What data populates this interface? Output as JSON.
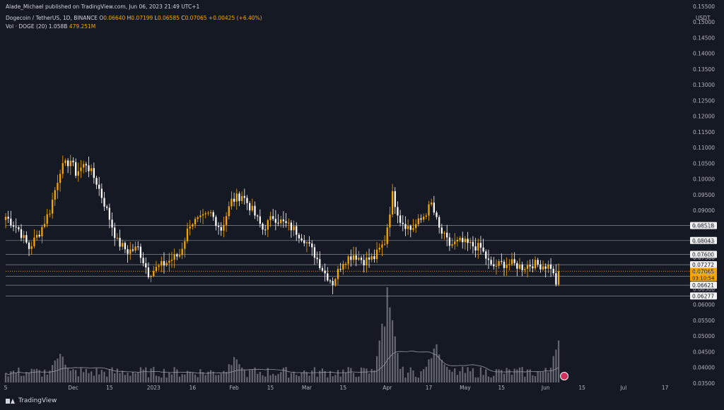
{
  "publisher": "Alade_Michael published on TradingView.com, Jun 06, 2023 21:49 UTC+1",
  "currency": "USDT",
  "symbol": {
    "name": "Dogecoin / TetherUS, 1D, BINANCE",
    "open_label": "O",
    "open": "0.06640",
    "high_label": "H",
    "high": "0.07199",
    "low_label": "L",
    "low": "0.06585",
    "close_label": "C",
    "close": "0.07065",
    "change": "+0.00425 (+6.40%)"
  },
  "volume": {
    "label": "Vol · DOGE (20)",
    "value1": "1.058B",
    "value2": "479.251M"
  },
  "brand": "TradingView",
  "colors": {
    "background": "#151924",
    "up": "#f7a600",
    "down": "#ffffff",
    "grid_text": "#b2b5be",
    "level_line": "#aeb2bc",
    "ma_line": "#9598a1"
  },
  "chart_data": {
    "type": "candlestick",
    "y_axis": {
      "min": 0.035,
      "max": 0.157,
      "step": 0.005,
      "scale": "linear",
      "position": "right",
      "tick_labels": [
        "0.15500",
        "0.15000",
        "0.14500",
        "0.14000",
        "0.13500",
        "0.13000",
        "0.12500",
        "0.12000",
        "0.11500",
        "0.11000",
        "0.10500",
        "0.10000",
        "0.09500",
        "0.09000",
        "0.08500",
        "0.08000",
        "0.07500",
        "0.07000",
        "0.06500",
        "0.06000",
        "0.05500",
        "0.05000",
        "0.04500",
        "0.04000",
        "0.03500"
      ]
    },
    "x_axis": {
      "tick_labels": [
        {
          "label": "5",
          "date": "2022-11-05"
        },
        {
          "label": "Dec",
          "date": "2022-12-01"
        },
        {
          "label": "15",
          "date": "2022-12-15"
        },
        {
          "label": "2023",
          "date": "2023-01-01"
        },
        {
          "label": "16",
          "date": "2023-01-16"
        },
        {
          "label": "Feb",
          "date": "2023-02-01"
        },
        {
          "label": "15",
          "date": "2023-02-15"
        },
        {
          "label": "Mar",
          "date": "2023-03-01"
        },
        {
          "label": "15",
          "date": "2023-03-15"
        },
        {
          "label": "Apr",
          "date": "2023-04-01"
        },
        {
          "label": "17",
          "date": "2023-04-17"
        },
        {
          "label": "May",
          "date": "2023-05-01"
        },
        {
          "label": "15",
          "date": "2023-05-15"
        },
        {
          "label": "Jun",
          "date": "2023-06-01"
        },
        {
          "label": "15",
          "date": "2023-06-15"
        },
        {
          "label": "Jul",
          "date": "2023-07-01"
        },
        {
          "label": "17",
          "date": "2023-07-17"
        }
      ]
    },
    "horizontal_levels": [
      "0.08518",
      "0.08043",
      "0.07600",
      "0.07272",
      "0.06906",
      "0.06621",
      "0.06277"
    ],
    "current_price": {
      "value": "0.07065",
      "countdown": "03:10:54"
    },
    "price_path": [
      {
        "date": "2022-11-05",
        "price": 0.088
      },
      {
        "date": "2022-11-10",
        "price": 0.084
      },
      {
        "date": "2022-11-14",
        "price": 0.078
      },
      {
        "date": "2022-11-18",
        "price": 0.083
      },
      {
        "date": "2022-11-22",
        "price": 0.09
      },
      {
        "date": "2022-11-26",
        "price": 0.103
      },
      {
        "date": "2022-11-30",
        "price": 0.106
      },
      {
        "date": "2022-12-02",
        "price": 0.102
      },
      {
        "date": "2022-12-06",
        "price": 0.105
      },
      {
        "date": "2022-12-10",
        "price": 0.099
      },
      {
        "date": "2022-12-14",
        "price": 0.09
      },
      {
        "date": "2022-12-18",
        "price": 0.08
      },
      {
        "date": "2022-12-22",
        "price": 0.077
      },
      {
        "date": "2022-12-26",
        "price": 0.078
      },
      {
        "date": "2022-12-30",
        "price": 0.07
      },
      {
        "date": "2023-01-03",
        "price": 0.072
      },
      {
        "date": "2023-01-07",
        "price": 0.074
      },
      {
        "date": "2023-01-11",
        "price": 0.076
      },
      {
        "date": "2023-01-15",
        "price": 0.086
      },
      {
        "date": "2023-01-19",
        "price": 0.087
      },
      {
        "date": "2023-01-23",
        "price": 0.089
      },
      {
        "date": "2023-01-27",
        "price": 0.084
      },
      {
        "date": "2023-01-31",
        "price": 0.093
      },
      {
        "date": "2023-02-04",
        "price": 0.095
      },
      {
        "date": "2023-02-08",
        "price": 0.09
      },
      {
        "date": "2023-02-12",
        "price": 0.084
      },
      {
        "date": "2023-02-16",
        "price": 0.088
      },
      {
        "date": "2023-02-20",
        "price": 0.086
      },
      {
        "date": "2023-02-24",
        "price": 0.084
      },
      {
        "date": "2023-02-28",
        "price": 0.081
      },
      {
        "date": "2023-03-04",
        "price": 0.076
      },
      {
        "date": "2023-03-08",
        "price": 0.07
      },
      {
        "date": "2023-03-11",
        "price": 0.067
      },
      {
        "date": "2023-03-15",
        "price": 0.074
      },
      {
        "date": "2023-03-19",
        "price": 0.076
      },
      {
        "date": "2023-03-23",
        "price": 0.074
      },
      {
        "date": "2023-03-27",
        "price": 0.075
      },
      {
        "date": "2023-03-31",
        "price": 0.08
      },
      {
        "date": "2023-04-03",
        "price": 0.095
      },
      {
        "date": "2023-04-06",
        "price": 0.087
      },
      {
        "date": "2023-04-10",
        "price": 0.084
      },
      {
        "date": "2023-04-14",
        "price": 0.087
      },
      {
        "date": "2023-04-18",
        "price": 0.092
      },
      {
        "date": "2023-04-21",
        "price": 0.084
      },
      {
        "date": "2023-04-25",
        "price": 0.079
      },
      {
        "date": "2023-04-29",
        "price": 0.08
      },
      {
        "date": "2023-05-03",
        "price": 0.079
      },
      {
        "date": "2023-05-07",
        "price": 0.078
      },
      {
        "date": "2023-05-11",
        "price": 0.072
      },
      {
        "date": "2023-05-15",
        "price": 0.073
      },
      {
        "date": "2023-05-19",
        "price": 0.073
      },
      {
        "date": "2023-05-23",
        "price": 0.072
      },
      {
        "date": "2023-05-27",
        "price": 0.073
      },
      {
        "date": "2023-05-31",
        "price": 0.0725
      },
      {
        "date": "2023-06-03",
        "price": 0.0722
      },
      {
        "date": "2023-06-05",
        "price": 0.0664
      },
      {
        "date": "2023-06-06",
        "price": 0.07065
      }
    ],
    "volume_peaks": [
      {
        "date": "2022-11-26",
        "value": 0.9
      },
      {
        "date": "2023-02-01",
        "value": 0.7
      },
      {
        "date": "2023-04-01",
        "value": 2.4
      },
      {
        "date": "2023-04-20",
        "value": 1.2
      },
      {
        "date": "2023-06-06",
        "value": 1.058
      }
    ]
  }
}
